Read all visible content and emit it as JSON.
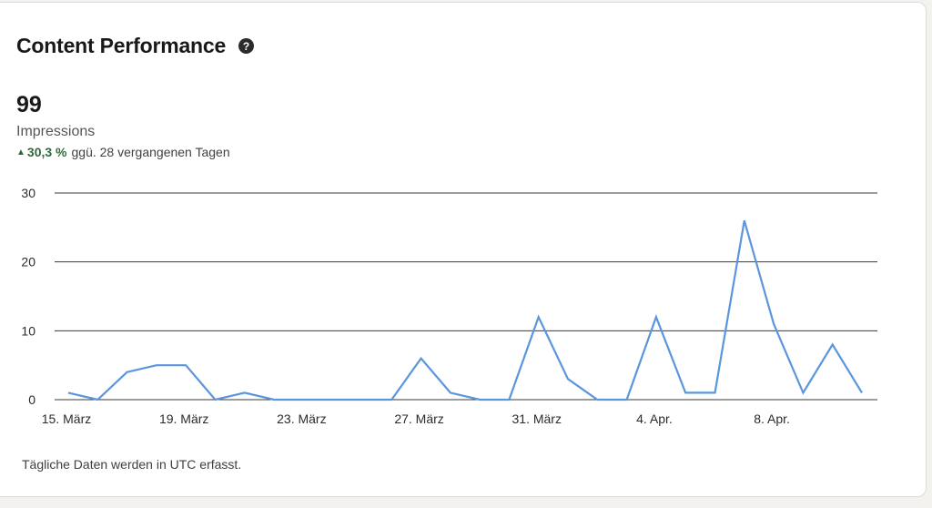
{
  "card": {
    "title": "Content Performance",
    "help_icon": "question-circle-icon"
  },
  "metric": {
    "value": "99",
    "label": "Impressions",
    "trend_icon": "triangle-up-icon",
    "trend_arrow": "▲",
    "trend_value": "30,3 %",
    "trend_suffix": "ggü. 28 vergangenen Tagen",
    "trend_color": "#2e6b3a"
  },
  "chart_data": {
    "type": "line",
    "ylim": [
      0,
      30
    ],
    "yticks": [
      0,
      10,
      20,
      30
    ],
    "xtick_labels": [
      "15. März",
      "19. März",
      "23. März",
      "27. März",
      "31. März",
      "4. Apr.",
      "8. Apr."
    ],
    "xtick_indices": [
      0,
      4,
      8,
      12,
      16,
      20,
      24
    ],
    "series": [
      {
        "color": "#5a95dd",
        "values": [
          1,
          0,
          4,
          5,
          5,
          0,
          1,
          0,
          0,
          0,
          0,
          0,
          6,
          1,
          0,
          0,
          12,
          3,
          0,
          0,
          12,
          1,
          1,
          26,
          11,
          1,
          8,
          1
        ]
      }
    ],
    "grid": true
  },
  "footer": {
    "note": "Tägliche Daten werden in UTC erfasst."
  }
}
